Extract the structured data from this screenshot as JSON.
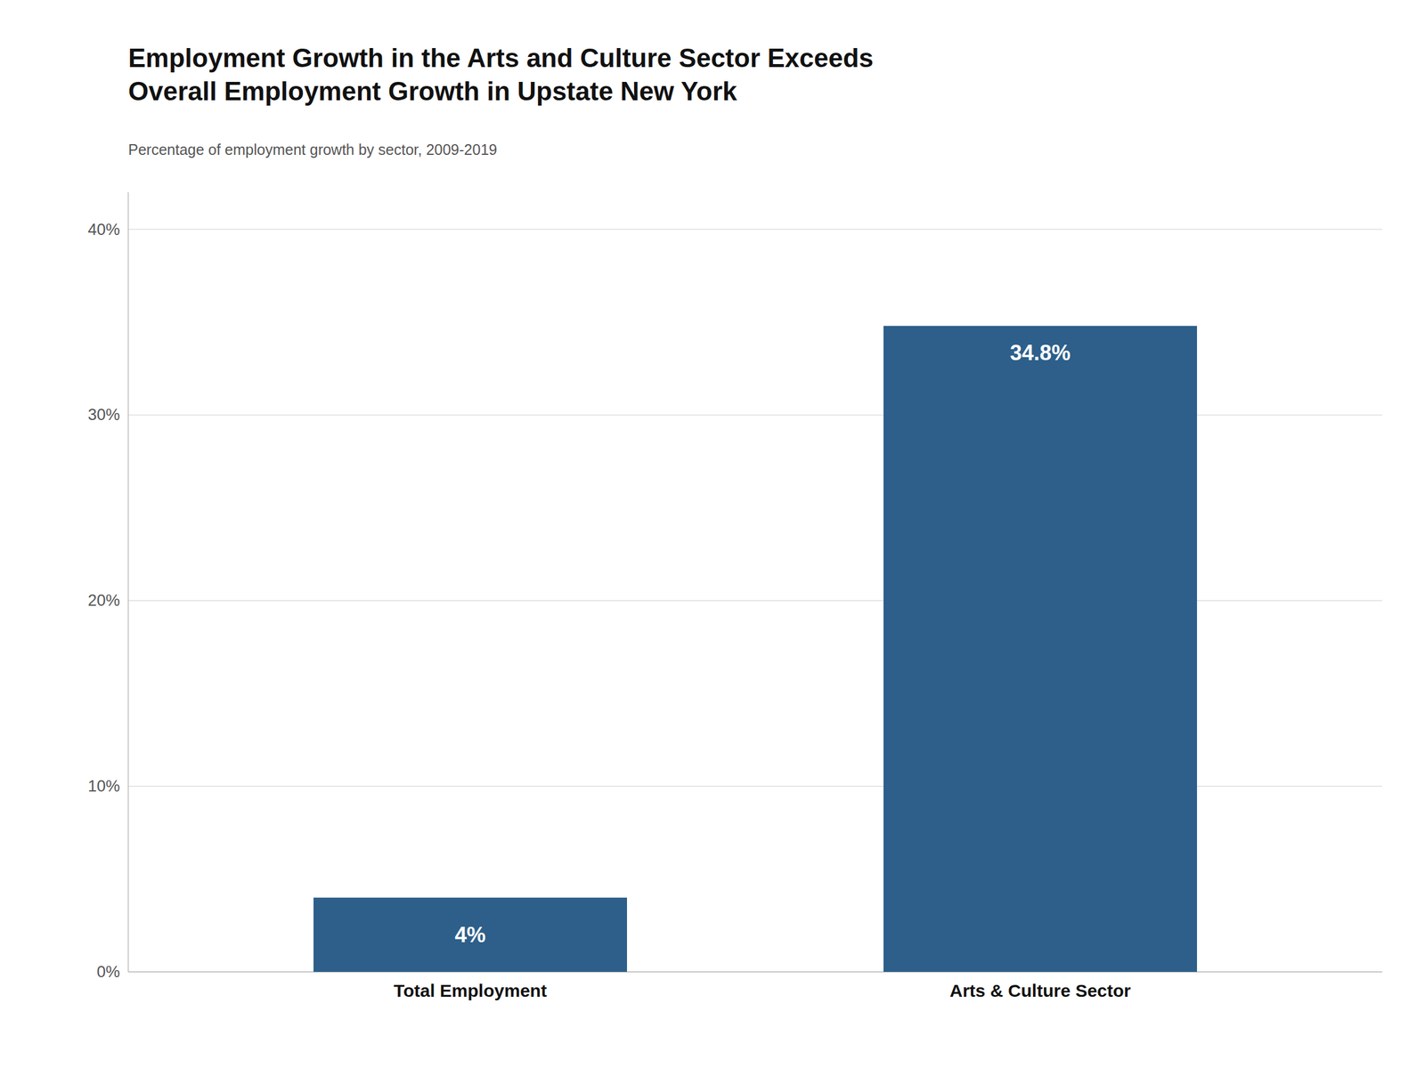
{
  "chart_data": {
    "type": "bar",
    "title": "Employment Growth in the Arts and Culture Sector Exceeds\nOverall Employment Growth in Upstate New York",
    "subtitle": "Percentage of employment growth by sector, 2009-2019",
    "categories": [
      "Total Employment",
      "Arts & Culture Sector"
    ],
    "values": [
      4.0,
      34.8
    ],
    "value_labels": [
      "4%",
      "34.8%"
    ],
    "data_labels": true,
    "color": "#2d5f8a",
    "ylim": [
      0,
      42
    ],
    "yticks": [
      {
        "value": 0,
        "label": "0%"
      },
      {
        "value": 10,
        "label": "10%"
      },
      {
        "value": 20,
        "label": "20%"
      },
      {
        "value": 30,
        "label": "30%"
      },
      {
        "value": 40,
        "label": "40%"
      }
    ],
    "grid": true
  }
}
